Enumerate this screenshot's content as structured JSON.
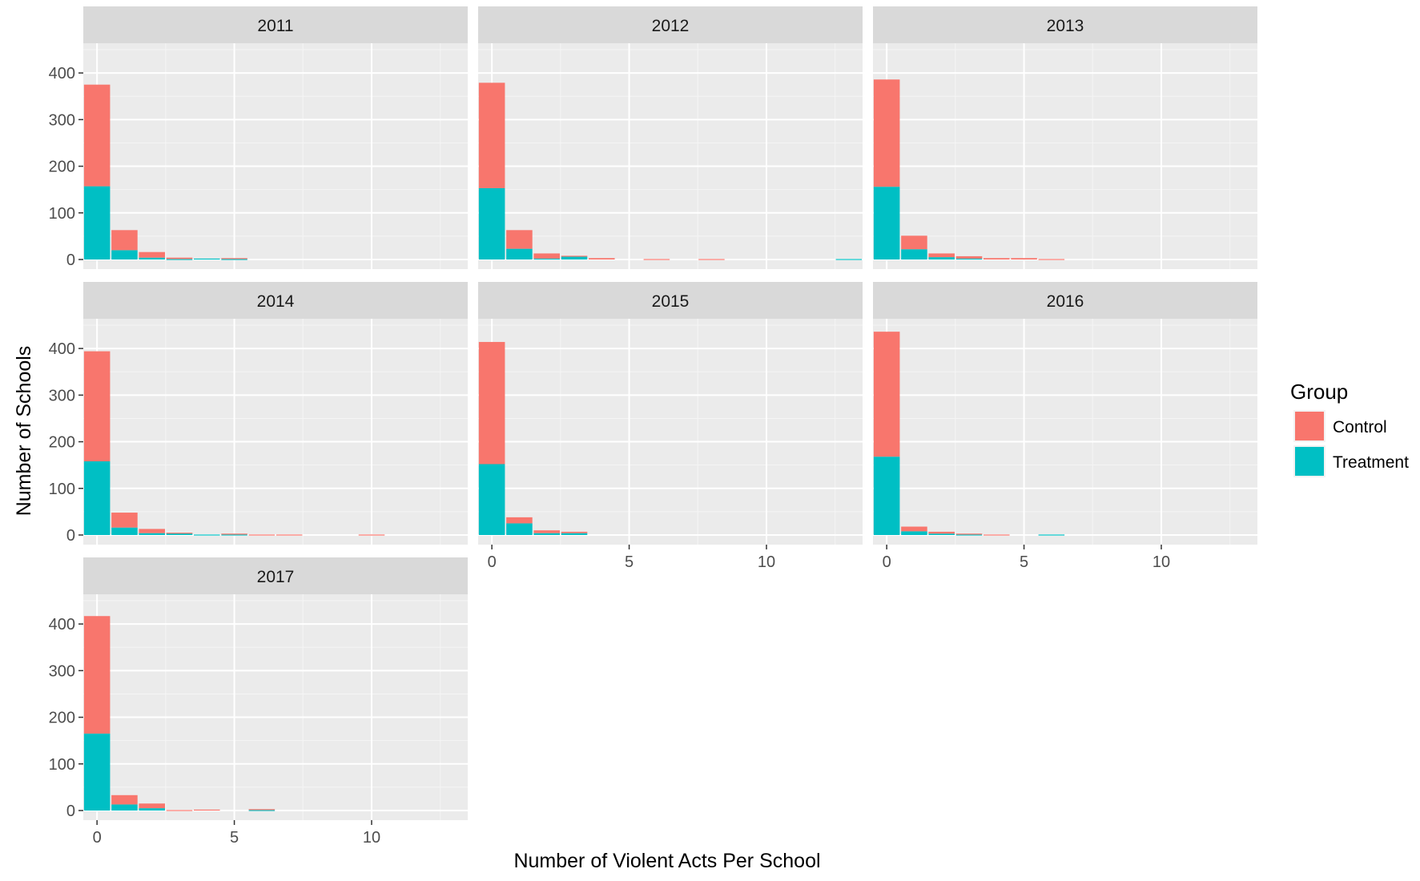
{
  "chart_data": {
    "type": "bar",
    "stacked": true,
    "faceted": true,
    "xlabel": "Number of Violent Acts Per School",
    "ylabel": "Number of Schools",
    "xlim": [
      -0.5,
      13.5
    ],
    "ylim": [
      0,
      450
    ],
    "x_ticks": [
      0,
      5,
      10
    ],
    "y_ticks": [
      0,
      100,
      200,
      300,
      400
    ],
    "grid": true,
    "legend": {
      "title": "Group",
      "position": "right",
      "items": [
        {
          "name": "Control",
          "color": "#F8766D"
        },
        {
          "name": "Treatment",
          "color": "#00BFC4"
        }
      ]
    },
    "x": [
      0,
      1,
      2,
      3,
      4,
      5,
      6,
      7,
      8,
      9,
      10,
      11,
      12,
      13
    ],
    "panels": [
      {
        "title": "2011",
        "series": [
          {
            "name": "Control",
            "values": [
              218,
              43,
              12,
              3,
              0,
              2,
              0,
              0,
              0,
              0,
              0,
              0,
              0,
              0
            ]
          },
          {
            "name": "Treatment",
            "values": [
              157,
              20,
              4,
              1,
              2,
              1,
              0,
              0,
              0,
              0,
              0,
              0,
              0,
              0
            ]
          }
        ]
      },
      {
        "title": "2012",
        "series": [
          {
            "name": "Control",
            "values": [
              226,
              40,
              11,
              2,
              3,
              0,
              1,
              0,
              1,
              0,
              0,
              0,
              0,
              0
            ]
          },
          {
            "name": "Treatment",
            "values": [
              153,
              23,
              2,
              6,
              0,
              0,
              0,
              0,
              0,
              0,
              0,
              0,
              0,
              1
            ]
          }
        ]
      },
      {
        "title": "2013",
        "series": [
          {
            "name": "Control",
            "values": [
              230,
              29,
              8,
              5,
              3,
              3,
              1,
              0,
              0,
              0,
              0,
              0,
              0,
              0
            ]
          },
          {
            "name": "Treatment",
            "values": [
              156,
              22,
              5,
              2,
              0,
              0,
              0,
              0,
              0,
              0,
              0,
              0,
              0,
              0
            ]
          }
        ]
      },
      {
        "title": "2014",
        "series": [
          {
            "name": "Control",
            "values": [
              236,
              32,
              9,
              1,
              0,
              2,
              1,
              1,
              0,
              0,
              1,
              0,
              0,
              0
            ]
          },
          {
            "name": "Treatment",
            "values": [
              158,
              16,
              4,
              4,
              1,
              1,
              0,
              0,
              0,
              0,
              0,
              0,
              0,
              0
            ]
          }
        ]
      },
      {
        "title": "2015",
        "series": [
          {
            "name": "Control",
            "values": [
              262,
              13,
              6,
              3,
              0,
              0,
              0,
              0,
              0,
              0,
              0,
              0,
              0,
              0
            ]
          },
          {
            "name": "Treatment",
            "values": [
              152,
              25,
              4,
              4,
              0,
              0,
              0,
              0,
              0,
              0,
              0,
              0,
              0,
              0
            ]
          }
        ]
      },
      {
        "title": "2016",
        "series": [
          {
            "name": "Control",
            "values": [
              268,
              10,
              4,
              2,
              1,
              0,
              0,
              0,
              0,
              0,
              0,
              0,
              0,
              0
            ]
          },
          {
            "name": "Treatment",
            "values": [
              168,
              8,
              3,
              1,
              0,
              0,
              1,
              0,
              0,
              0,
              0,
              0,
              0,
              0
            ]
          }
        ]
      },
      {
        "title": "2017",
        "series": [
          {
            "name": "Control",
            "values": [
              252,
              20,
              10,
              1,
              2,
              0,
              2,
              0,
              0,
              0,
              0,
              0,
              0,
              0
            ]
          },
          {
            "name": "Treatment",
            "values": [
              165,
              13,
              5,
              0,
              0,
              0,
              1,
              0,
              0,
              0,
              0,
              0,
              0,
              0
            ]
          }
        ]
      }
    ]
  }
}
